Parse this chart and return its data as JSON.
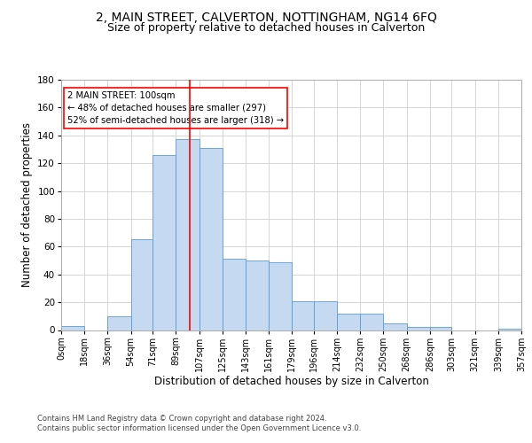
{
  "title": "2, MAIN STREET, CALVERTON, NOTTINGHAM, NG14 6FQ",
  "subtitle": "Size of property relative to detached houses in Calverton",
  "xlabel": "Distribution of detached houses by size in Calverton",
  "ylabel": "Number of detached properties",
  "bar_color": "#c5d9f0",
  "bar_edge_color": "#5b9bd5",
  "background_color": "#ffffff",
  "grid_color": "#d0d0d0",
  "vline_x": 100,
  "vline_color": "red",
  "annotation_text": "2 MAIN STREET: 100sqm\n← 48% of detached houses are smaller (297)\n52% of semi-detached houses are larger (318) →",
  "annotation_box_color": "white",
  "annotation_box_edge": "red",
  "bin_edges": [
    0,
    18,
    36,
    54,
    71,
    89,
    107,
    125,
    143,
    161,
    179,
    196,
    214,
    232,
    250,
    268,
    286,
    303,
    321,
    339,
    357
  ],
  "bin_counts": [
    3,
    0,
    10,
    65,
    126,
    137,
    131,
    51,
    50,
    49,
    21,
    21,
    12,
    12,
    5,
    2,
    2,
    0,
    0,
    1
  ],
  "tick_labels": [
    "0sqm",
    "18sqm",
    "36sqm",
    "54sqm",
    "71sqm",
    "89sqm",
    "107sqm",
    "125sqm",
    "143sqm",
    "161sqm",
    "179sqm",
    "196sqm",
    "214sqm",
    "232sqm",
    "250sqm",
    "268sqm",
    "286sqm",
    "303sqm",
    "321sqm",
    "339sqm",
    "357sqm"
  ],
  "ylim": [
    0,
    180
  ],
  "yticks": [
    0,
    20,
    40,
    60,
    80,
    100,
    120,
    140,
    160,
    180
  ],
  "footer": "Contains HM Land Registry data © Crown copyright and database right 2024.\nContains public sector information licensed under the Open Government Licence v3.0.",
  "title_fontsize": 10,
  "subtitle_fontsize": 9,
  "tick_fontsize": 7,
  "ylabel_fontsize": 8.5,
  "xlabel_fontsize": 8.5,
  "footer_fontsize": 6.0
}
